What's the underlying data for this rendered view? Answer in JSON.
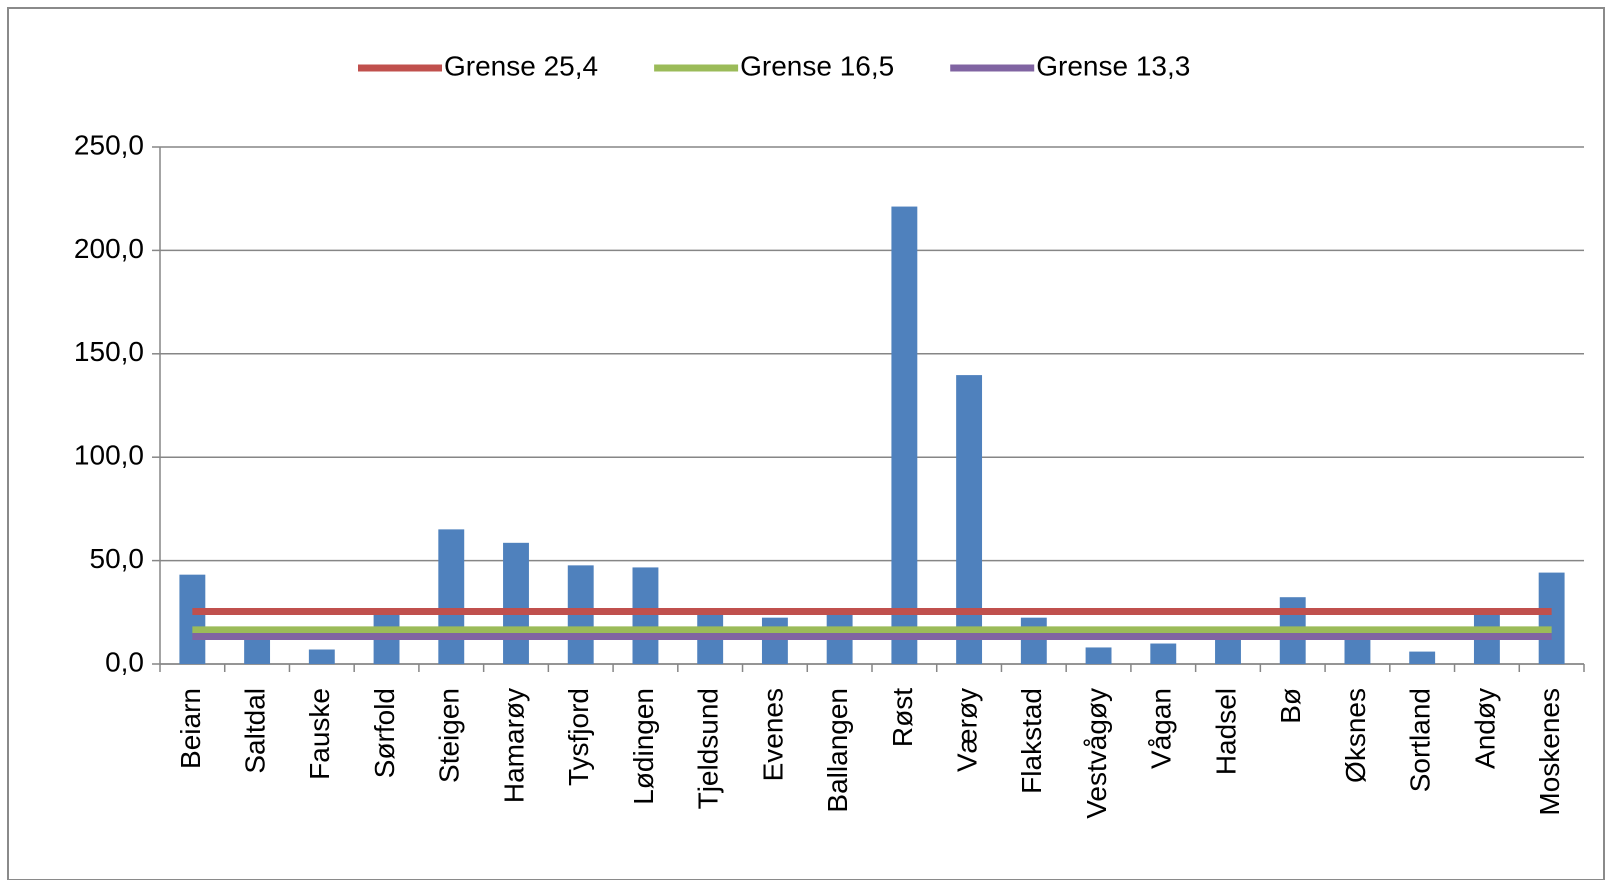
{
  "chart_data": {
    "type": "bar",
    "categories": [
      "Beiarn",
      "Saltdal",
      "Fauske",
      "Sørfold",
      "Steigen",
      "Hamarøy",
      "Tysfjord",
      "Lødingen",
      "Tjeldsund",
      "Evenes",
      "Ballangen",
      "Røst",
      "Værøy",
      "Flakstad",
      "Vestvågøy",
      "Vågan",
      "Hadsel",
      "Bø",
      "Øksnes",
      "Sortland",
      "Andøy",
      "Moskenes"
    ],
    "series": [
      {
        "type": "bar",
        "color": "#4f81bd",
        "values": [
          43.2,
          15,
          7,
          25,
          65.1,
          58.6,
          47.7,
          46.7,
          24,
          22.4,
          24,
          221.2,
          139.7,
          22.4,
          8,
          9.9,
          15,
          32.3,
          15,
          6,
          24,
          44.2
        ]
      },
      {
        "type": "line",
        "name": "Grense 25,4",
        "color": "#c0504d",
        "values": [
          25.4,
          25.4,
          25.4,
          25.4,
          25.4,
          25.4,
          25.4,
          25.4,
          25.4,
          25.4,
          25.4,
          25.4,
          25.4,
          25.4,
          25.4,
          25.4,
          25.4,
          25.4,
          25.4,
          25.4,
          25.4,
          25.4
        ]
      },
      {
        "type": "line",
        "name": "Grense 16,5",
        "color": "#9bbb59",
        "values": [
          16.5,
          16.5,
          16.5,
          16.5,
          16.5,
          16.5,
          16.5,
          16.5,
          16.5,
          16.5,
          16.5,
          16.5,
          16.5,
          16.5,
          16.5,
          16.5,
          16.5,
          16.5,
          16.5,
          16.5,
          16.5,
          16.5
        ]
      },
      {
        "type": "line",
        "name": "Grense 13,3",
        "color": "#8064a2",
        "values": [
          13.3,
          13.3,
          13.3,
          13.3,
          13.3,
          13.3,
          13.3,
          13.3,
          13.3,
          13.3,
          13.3,
          13.3,
          13.3,
          13.3,
          13.3,
          13.3,
          13.3,
          13.3,
          13.3,
          13.3,
          13.3,
          13.3
        ]
      }
    ],
    "ylim": [
      0,
      250
    ],
    "yticks": [
      {
        "value": 0,
        "label": "0,0"
      },
      {
        "value": 50,
        "label": "50,0"
      },
      {
        "value": 100,
        "label": "100,0"
      },
      {
        "value": 150,
        "label": "150,0"
      },
      {
        "value": 200,
        "label": "200,0"
      },
      {
        "value": 250,
        "label": "250,0"
      }
    ],
    "grid": true,
    "legend": "top"
  }
}
